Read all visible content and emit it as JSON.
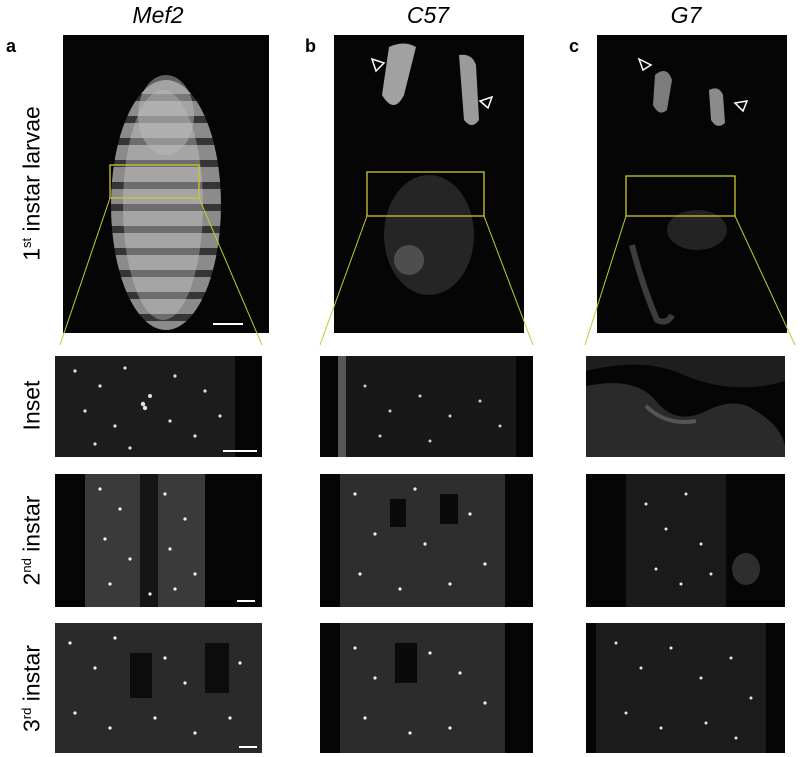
{
  "columns": [
    {
      "letter": "a",
      "title": "Mef2"
    },
    {
      "letter": "b",
      "title": "C57"
    },
    {
      "letter": "c",
      "title": "G7"
    }
  ],
  "rows": [
    {
      "prefix": "1",
      "sup": "st",
      "suffix": " instar larvae"
    },
    {
      "prefix": "",
      "sup": "",
      "suffix": "Inset"
    },
    {
      "prefix": "2",
      "sup": "nd",
      "suffix": " instar"
    },
    {
      "prefix": "3",
      "sup": "rd",
      "suffix": " instar"
    }
  ],
  "colors": {
    "inset_box": "#c8c832",
    "background": "#050505",
    "signal": "#ffffff"
  },
  "annotations": {
    "arrowheads": "open-triangle-arrowhead-icon"
  }
}
